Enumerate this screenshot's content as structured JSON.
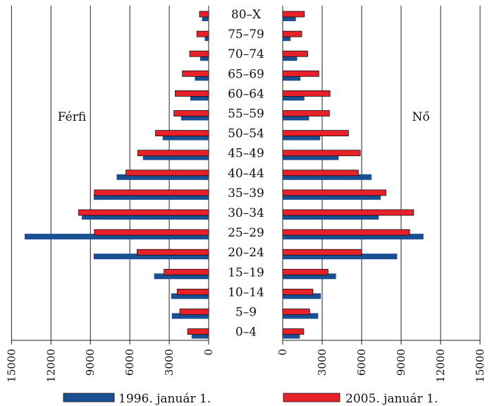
{
  "chart_data": {
    "type": "bar",
    "orientation": "horizontal-population-pyramid",
    "categories": [
      "80–X",
      "75–79",
      "70–74",
      "65–69",
      "60–64",
      "55–59",
      "50–54",
      "45–49",
      "40–44",
      "35–39",
      "30–34",
      "25–29",
      "20–24",
      "15–19",
      "10–14",
      "5–9",
      "0–4"
    ],
    "panels": [
      {
        "label": "Férfi",
        "direction": "left",
        "xlim": [
          0,
          15000
        ],
        "ticks": [
          "15000",
          "12000",
          "9000",
          "6000",
          "3000",
          "0"
        ],
        "series": [
          {
            "name": "1996. január 1.",
            "color": "#1a4f92",
            "values": [
              500,
              300,
              650,
              1050,
              1400,
              2100,
              3500,
              5000,
              7000,
              8750,
              9650,
              14000,
              8750,
              4150,
              2850,
              2800,
              1300
            ]
          },
          {
            "name": "2005. január 1.",
            "color": "#e8202a",
            "values": [
              700,
              900,
              1450,
              2000,
              2550,
              2650,
              4050,
              5400,
              6300,
              8700,
              9900,
              8700,
              5450,
              3400,
              2400,
              2200,
              1600
            ]
          }
        ]
      },
      {
        "label": "Nő",
        "direction": "right",
        "xlim": [
          0,
          15000
        ],
        "ticks": [
          "0",
          "3000",
          "6000",
          "9000",
          "12000",
          "15000"
        ],
        "series": [
          {
            "name": "1996. január 1.",
            "color": "#1a4f92",
            "values": [
              1000,
              600,
              1100,
              1350,
              1650,
              2000,
              2850,
              4250,
              6750,
              7450,
              7300,
              10700,
              8700,
              4050,
              2900,
              2700,
              1300
            ]
          },
          {
            "name": "2005. január 1.",
            "color": "#e8202a",
            "values": [
              1650,
              1450,
              1900,
              2750,
              3600,
              3550,
              5000,
              5900,
              5750,
              7850,
              9950,
              9650,
              6000,
              3450,
              2300,
              2050,
              1600
            ]
          }
        ]
      }
    ],
    "legend": [
      {
        "name": "1996. január 1.",
        "color": "#1a4f92"
      },
      {
        "name": "2005. január 1.",
        "color": "#e8202a"
      }
    ],
    "grid": true
  }
}
